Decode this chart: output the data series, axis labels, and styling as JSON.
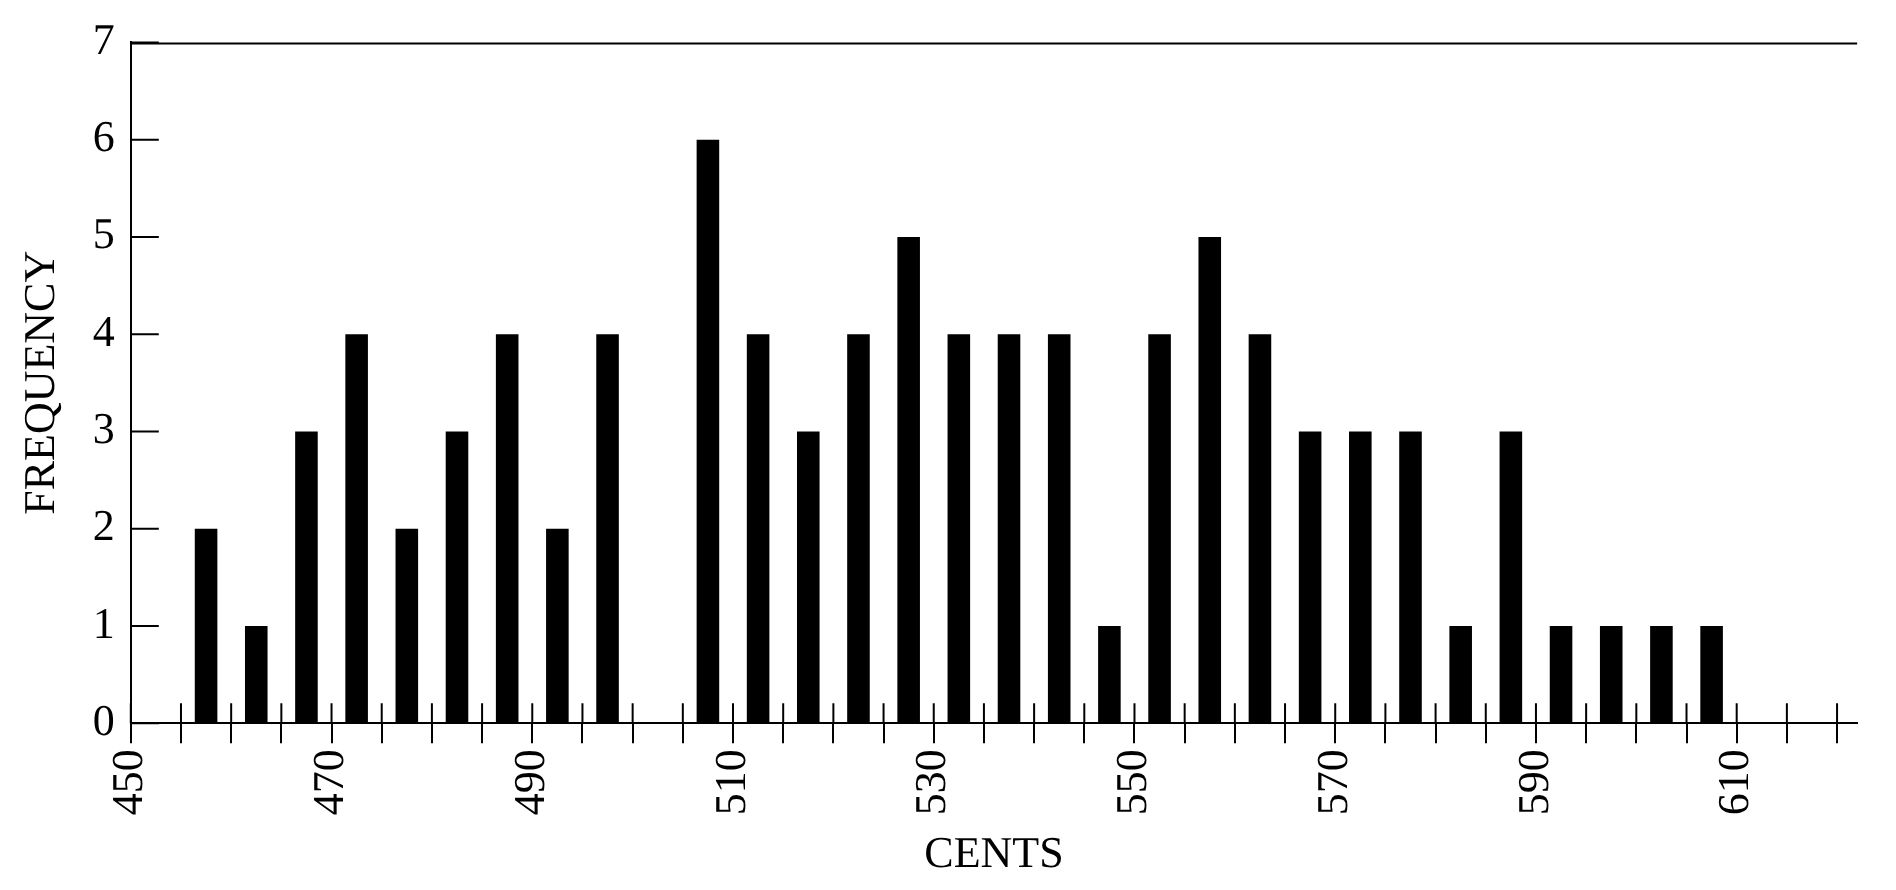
{
  "chart_data": {
    "type": "histogram",
    "xlabel": "CENTS",
    "ylabel": "FREQUENCY",
    "bins": [
      455,
      460,
      465,
      470,
      475,
      480,
      485,
      490,
      495,
      500,
      505,
      510,
      515,
      520,
      525,
      530,
      535,
      540,
      545,
      550,
      555,
      560,
      565,
      570,
      575,
      580,
      585,
      590,
      595,
      600,
      605,
      610
    ],
    "values": [
      2,
      1,
      3,
      4,
      2,
      3,
      4,
      2,
      4,
      0,
      6,
      4,
      3,
      4,
      5,
      4,
      4,
      4,
      1,
      4,
      5,
      4,
      3,
      3,
      3,
      1,
      3,
      1,
      1,
      1,
      1
    ],
    "color": "#000000",
    "xlim": [
      450,
      622
    ],
    "xticks": [
      450,
      {
        "value": 455,
        "label": null
      },
      {
        "value": 460,
        "label": null
      },
      {
        "value": 465,
        "label": null
      },
      470,
      {
        "value": 475,
        "label": null
      },
      {
        "value": 480,
        "label": null
      },
      {
        "value": 485,
        "label": null
      },
      490,
      {
        "value": 495,
        "label": null
      },
      {
        "value": 500,
        "label": null
      },
      {
        "value": 505,
        "label": null
      },
      510,
      {
        "value": 515,
        "label": null
      },
      {
        "value": 520,
        "label": null
      },
      {
        "value": 525,
        "label": null
      },
      530,
      {
        "value": 535,
        "label": null
      },
      {
        "value": 540,
        "label": null
      },
      {
        "value": 545,
        "label": null
      },
      550,
      {
        "value": 555,
        "label": null
      },
      {
        "value": 560,
        "label": null
      },
      {
        "value": 565,
        "label": null
      },
      570,
      {
        "value": 575,
        "label": null
      },
      {
        "value": 580,
        "label": null
      },
      {
        "value": 585,
        "label": null
      },
      590,
      {
        "value": 595,
        "label": null
      },
      {
        "value": 600,
        "label": null
      },
      {
        "value": 605,
        "label": null
      },
      610,
      {
        "value": 615,
        "label": null
      },
      {
        "value": 620,
        "label": null
      }
    ],
    "ylim": [
      0,
      7
    ],
    "yticks": [
      0,
      1,
      2,
      3,
      4,
      5,
      6,
      7
    ],
    "grid": false,
    "legend": false
  }
}
